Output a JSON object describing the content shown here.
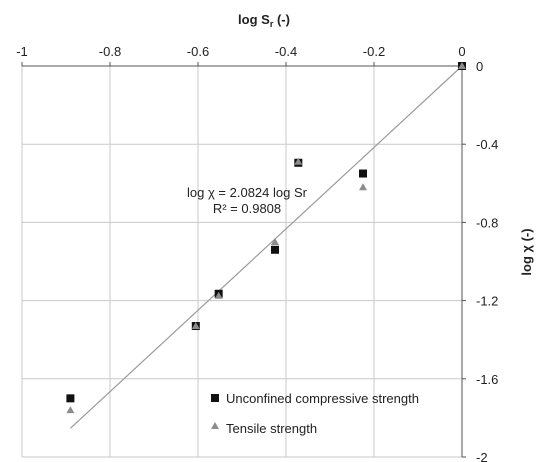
{
  "chart_data": {
    "type": "scatter",
    "xlabel_main": "log S",
    "xlabel_sub": "r",
    "xlabel_tail": " (-)",
    "ylabel": "log χ (-)",
    "xlim": [
      -1,
      0
    ],
    "ylim": [
      -2,
      0
    ],
    "xticks": [
      -1,
      -0.8,
      -0.6,
      -0.4,
      -0.2,
      0
    ],
    "xtick_labels": [
      "-1",
      "-0.8",
      "-0.6",
      "-0.4",
      "-0.2",
      "0"
    ],
    "yticks": [
      0,
      -0.4,
      -0.8,
      -1.2,
      -1.6,
      -2
    ],
    "ytick_labels": [
      "0",
      "-0.4",
      "-0.8",
      "-1.2",
      "-1.6",
      "-2"
    ],
    "grid": true,
    "x_axis_position": "top",
    "y_axis_position": "right",
    "legend_position": "bottom-right",
    "series": [
      {
        "name": "Unconfined compressive strength",
        "marker": "square",
        "color": "#111111",
        "x": [
          0.0,
          -0.225,
          -0.372,
          -0.425,
          -0.553,
          -0.605,
          -0.89
        ],
        "y": [
          0.0,
          -0.55,
          -0.495,
          -0.94,
          -1.165,
          -1.33,
          -1.7
        ]
      },
      {
        "name": "Tensile strength",
        "marker": "triangle",
        "color": "#8c8c8c",
        "x": [
          0.0,
          -0.225,
          -0.372,
          -0.425,
          -0.553,
          -0.605,
          -0.89
        ],
        "y": [
          0.0,
          -0.62,
          -0.49,
          -0.9,
          -1.175,
          -1.33,
          -1.76
        ]
      }
    ],
    "trendline": {
      "slope": 2.0824,
      "x_range": [
        -0.89,
        0
      ],
      "color": "#9a9a9a"
    },
    "annotation": {
      "line1": "log χ = 2.0824 log Sr",
      "line2": "R² = 0.9808",
      "x": -0.49,
      "y": -0.66
    }
  }
}
